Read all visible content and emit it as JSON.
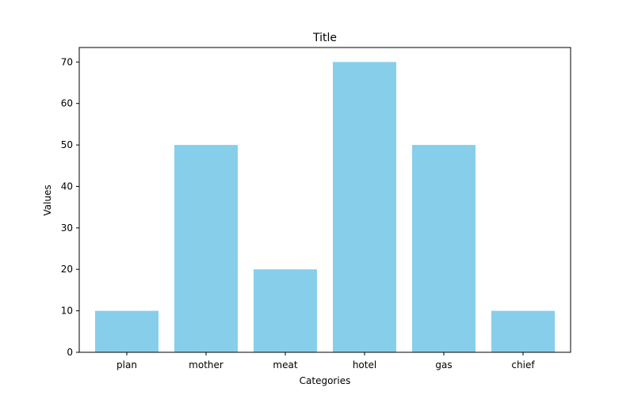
{
  "chart_data": {
    "type": "bar",
    "title": "Title",
    "xlabel": "Categories",
    "ylabel": "Values",
    "categories": [
      "plan",
      "mother",
      "meat",
      "hotel",
      "gas",
      "chief"
    ],
    "values": [
      10,
      50,
      20,
      70,
      50,
      10
    ],
    "ylim": [
      0,
      73.5
    ],
    "yticks": [
      0,
      10,
      20,
      30,
      40,
      50,
      60,
      70
    ],
    "bar_color": "#87CEEB",
    "grid": false,
    "legend": "none"
  }
}
